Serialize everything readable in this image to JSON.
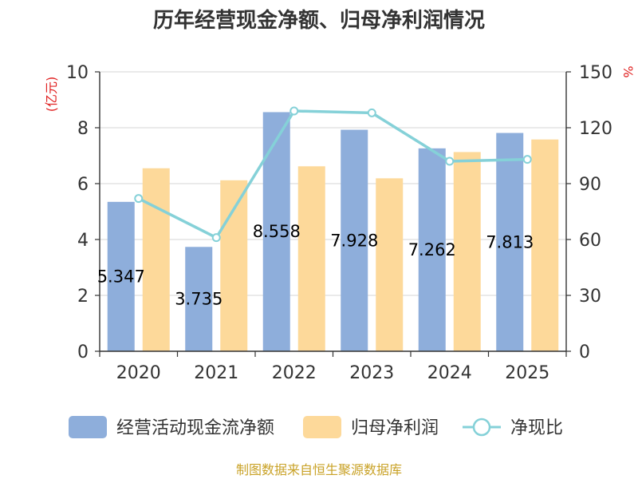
{
  "chart_data": {
    "type": "bar",
    "title": "历年经营现金净额、归母净利润情况",
    "categories": [
      "2020",
      "2021",
      "2022",
      "2023",
      "2024",
      "2025"
    ],
    "series": [
      {
        "name": "经营活动现金流净额",
        "type": "bar",
        "axis": "left",
        "color": "#8eaedb",
        "values": [
          5.347,
          3.735,
          8.558,
          7.928,
          7.262,
          7.813
        ],
        "labels": [
          "5.347",
          "3.735",
          "8.558",
          "7.928",
          "7.262",
          "7.813"
        ]
      },
      {
        "name": "归母净利润",
        "type": "bar",
        "axis": "left",
        "color": "#fdd99a",
        "values": [
          6.55,
          6.12,
          6.62,
          6.19,
          7.13,
          7.58
        ]
      },
      {
        "name": "净现比",
        "type": "line",
        "axis": "right",
        "color": "#85d1d8",
        "values": [
          82,
          61,
          129,
          128,
          102,
          103
        ]
      }
    ],
    "yLeft": {
      "unit": "(亿元)",
      "min": 0,
      "max": 10,
      "ticks": [
        "0",
        "2",
        "4",
        "6",
        "8",
        "10"
      ]
    },
    "yRight": {
      "unit": "%",
      "min": 0,
      "max": 150,
      "ticks": [
        "0",
        "30",
        "60",
        "90",
        "120",
        "150"
      ]
    },
    "legend": {
      "position": "bottom"
    },
    "grid": true
  },
  "source": "制图数据来自恒生聚源数据库"
}
